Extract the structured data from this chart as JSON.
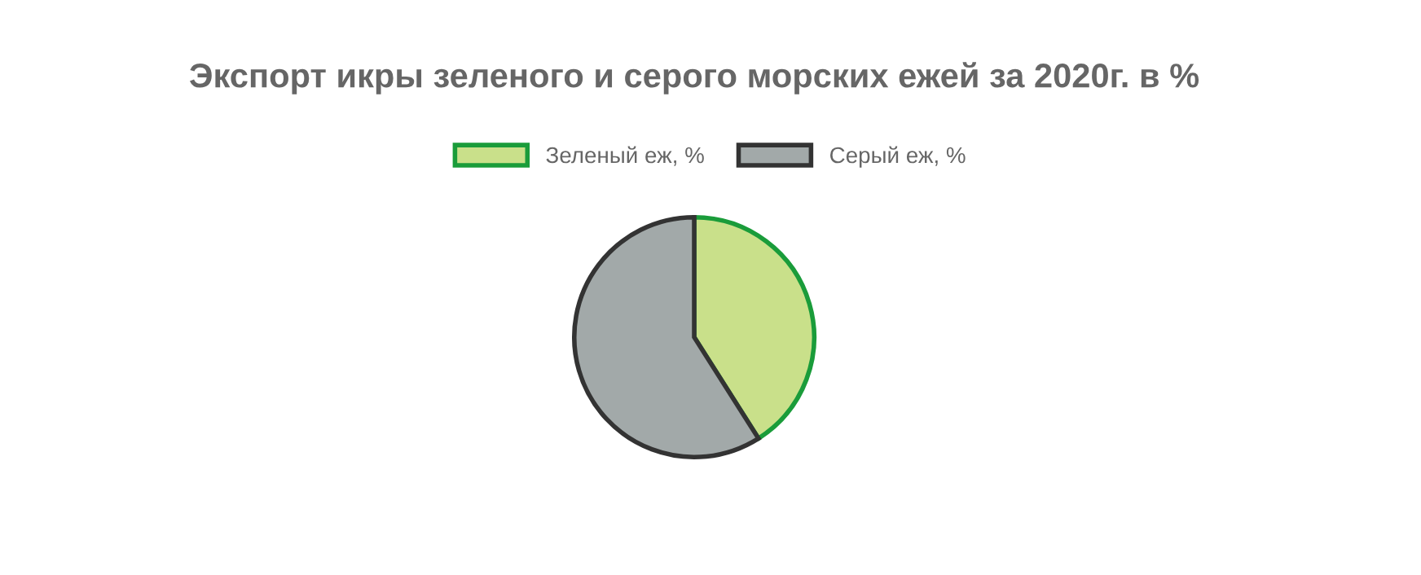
{
  "chart_data": {
    "type": "pie",
    "title": "Экспорт икры зеленого и серого морских ежей за 2020г. в %",
    "categories": [
      "Зеленый еж, %",
      "Серый еж, %"
    ],
    "values": [
      41,
      59
    ],
    "colors": [
      "#c9e08a",
      "#a2a9a9"
    ],
    "legend": "top"
  }
}
